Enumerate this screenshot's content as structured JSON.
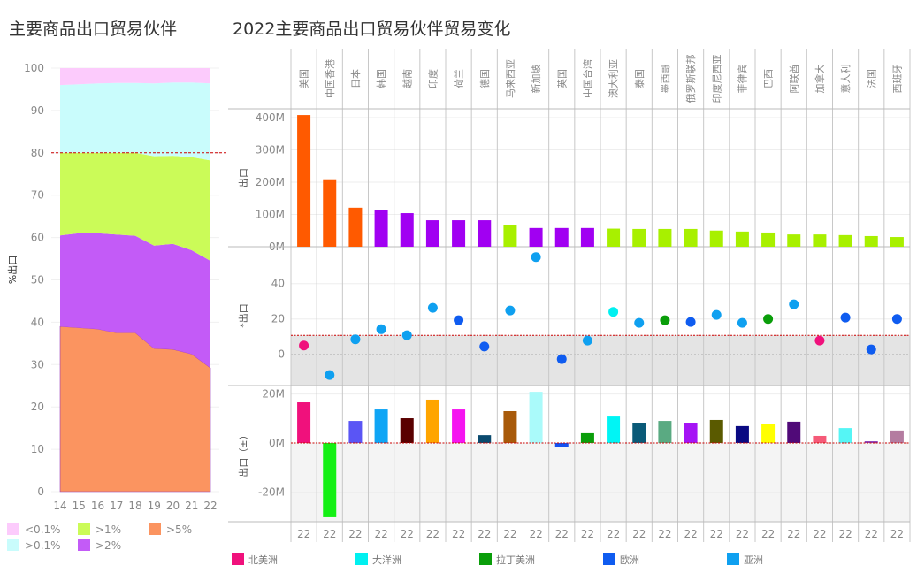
{
  "left_title": "主要商品出口贸易伙伴",
  "right_title": "2022主要商品出口贸易伙伴贸易变化",
  "chart_data": [
    {
      "type": "area",
      "stacked": true,
      "ylabel": "%出口",
      "x": [
        "14",
        "15",
        "16",
        "17",
        "18",
        "19",
        "20",
        "21",
        "22"
      ],
      "yticks": [
        "0",
        "10",
        "20",
        "30",
        "40",
        "50",
        "60",
        "70",
        "80",
        "90",
        "100"
      ],
      "ylim": [
        0,
        100
      ],
      "reference_line": 80,
      "series": [
        {
          "name": ">5%",
          "color": "#fb9460",
          "values": [
            39.0,
            38.7,
            38.4,
            37.5,
            37.5,
            33.8,
            33.6,
            32.5,
            29.2
          ]
        },
        {
          "name": ">2%",
          "color": "#c35bf7",
          "values": [
            21.5,
            22.3,
            22.6,
            23.2,
            22.9,
            24.3,
            24.9,
            24.5,
            25.3
          ]
        },
        {
          "name": ">1%",
          "color": "#cbfb58",
          "values": [
            19.5,
            19.0,
            19.0,
            19.3,
            19.6,
            21.1,
            20.8,
            22.0,
            23.7
          ]
        },
        {
          "name": ">0.1%",
          "color": "#c9fcfc",
          "values": [
            16.0,
            16.2,
            16.4,
            16.5,
            16.5,
            17.2,
            17.3,
            17.6,
            18.2
          ]
        },
        {
          "name": "<0.1%",
          "color": "#fccbfc",
          "values": [
            4.0,
            3.8,
            3.6,
            3.5,
            3.5,
            3.6,
            3.4,
            3.4,
            3.6
          ]
        }
      ],
      "legend": [
        {
          "name": "<0.1%",
          "color": "#fccbfc"
        },
        {
          "name": ">1%",
          "color": "#cbfb58"
        },
        {
          "name": ">5%",
          "color": "#fb9460"
        },
        {
          "name": ">0.1%",
          "color": "#c9fcfc"
        },
        {
          "name": ">2%",
          "color": "#c35bf7"
        }
      ],
      "legend_placement": "bottom"
    },
    {
      "type": "bar",
      "ylabel": "出口",
      "unit": "M",
      "yticks": [
        "0M",
        "100M",
        "200M",
        "300M",
        "400M"
      ],
      "ylim": [
        0,
        420
      ],
      "categories": [
        "美国",
        "中国香港",
        "日本",
        "韩国",
        "越南",
        "印度",
        "荷兰",
        "德国",
        "马来西亚",
        "新加坡",
        "英国",
        "中国台湾",
        "澳大利亚",
        "泰国",
        "墨西哥",
        "俄罗斯联邦",
        "印度尼西亚",
        "菲律宾",
        "巴西",
        "阿联酋",
        "加拿大",
        "意大利",
        "法国",
        "西班牙"
      ],
      "values": [
        408,
        209,
        121,
        115,
        104,
        82,
        82,
        82,
        66,
        58,
        58,
        58,
        56,
        55,
        55,
        55,
        50,
        47,
        44,
        38,
        38,
        36,
        33,
        30
      ],
      "colors": [
        "#ff5a00",
        "#ff5a00",
        "#ff5a00",
        "#a100f2",
        "#a100f2",
        "#a100f2",
        "#a100f2",
        "#a100f2",
        "#a8f000",
        "#a100f2",
        "#a100f2",
        "#a100f2",
        "#a8f000",
        "#a8f000",
        "#a8f000",
        "#a8f000",
        "#a8f000",
        "#a8f000",
        "#a8f000",
        "#a8f000",
        "#a8f000",
        "#a8f000",
        "#a8f000",
        "#a8f000"
      ]
    },
    {
      "type": "scatter",
      "ylabel": "*出口",
      "yticks": [
        "0",
        "20",
        "40"
      ],
      "ylim": [
        -18,
        60
      ],
      "reference_line": 10.7,
      "values": [
        5,
        -11.7,
        8.5,
        14.2,
        10.8,
        26.3,
        19.3,
        4.4,
        24.8,
        55,
        -2.7,
        7.8,
        24,
        17.8,
        19.3,
        18.3,
        22.3,
        17.8,
        20,
        28.3,
        7.8,
        20.8,
        2.8,
        20
      ],
      "continents": [
        "北美洲",
        "亚洲",
        "亚洲",
        "亚洲",
        "亚洲",
        "亚洲",
        "欧洲",
        "欧洲",
        "亚洲",
        "亚洲",
        "欧洲",
        "亚洲",
        "大洋洲",
        "亚洲",
        "拉丁美洲",
        "欧洲",
        "亚洲",
        "亚洲",
        "拉丁美洲",
        "亚洲",
        "北美洲",
        "欧洲",
        "欧洲",
        "欧洲"
      ]
    },
    {
      "type": "bar",
      "ylabel": "出口（±）",
      "unit": "M",
      "yticks": [
        "-20M",
        "0M",
        "20M"
      ],
      "ylim": [
        -32,
        23
      ],
      "x_label": "22",
      "values": [
        16.6,
        -30.3,
        9,
        13.7,
        10.1,
        17.7,
        13.7,
        3.2,
        13,
        20.9,
        -1.7,
        4,
        10.8,
        8.3,
        9,
        8.3,
        9.4,
        6.9,
        7.6,
        8.7,
        2.9,
        6.1,
        0.7,
        5.1
      ],
      "colors": [
        "#f0117c",
        "#14f014",
        "#5a55f5",
        "#0fa5f5",
        "#5a0000",
        "#ffa500",
        "#f514f0",
        "#0a4a6e",
        "#a85a0a",
        "#aafafa",
        "#1450f0",
        "#0a9e0a",
        "#00f5f5",
        "#0a5a78",
        "#5aaa82",
        "#a514f5",
        "#5a5a00",
        "#0a0a82",
        "#ffff00",
        "#500a78",
        "#f55a78",
        "#55f5f5",
        "#8c3cb4",
        "#b47ca0"
      ]
    }
  ],
  "continent_legend": [
    {
      "name": "北美洲",
      "color": "#f0117c"
    },
    {
      "name": "大洋洲",
      "color": "#00f0f0"
    },
    {
      "name": "拉丁美洲",
      "color": "#0a9e0a"
    },
    {
      "name": "欧洲",
      "color": "#0f5cf0"
    },
    {
      "name": "亚洲",
      "color": "#0fa0f0"
    }
  ]
}
